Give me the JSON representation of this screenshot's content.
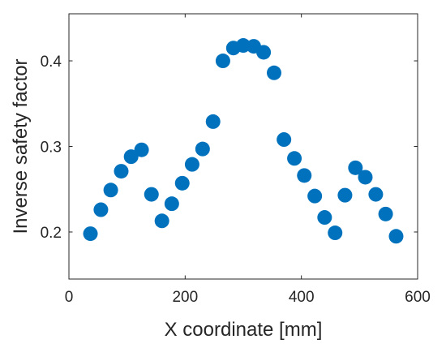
{
  "chart_data": {
    "type": "scatter",
    "title": "",
    "xlabel": "X coordinate [mm]",
    "ylabel": "Inverse safety factor",
    "xlim": [
      0,
      600
    ],
    "ylim": [
      0.145,
      0.455
    ],
    "x_ticks": [
      0,
      200,
      400,
      600
    ],
    "y_ticks": [
      0.2,
      0.3,
      0.4
    ],
    "x_tick_labels": [
      "0",
      "200",
      "400",
      "600"
    ],
    "y_tick_labels": [
      "0.2",
      "0.3",
      "0.4"
    ],
    "grid": false,
    "legend": "none",
    "marker_color": "#0072BD",
    "axis_color": "#262626",
    "series": [
      {
        "x": [
          37,
          55,
          72,
          90,
          107,
          125,
          142,
          160,
          177,
          195,
          212,
          230,
          248,
          265,
          283,
          300,
          318,
          335,
          353,
          370,
          388,
          405,
          423,
          440,
          458,
          475,
          493,
          510,
          528,
          545,
          563
        ],
        "y": [
          0.198,
          0.226,
          0.249,
          0.271,
          0.288,
          0.296,
          0.244,
          0.213,
          0.233,
          0.257,
          0.279,
          0.297,
          0.329,
          0.4,
          0.415,
          0.418,
          0.417,
          0.41,
          0.386,
          0.308,
          0.286,
          0.266,
          0.242,
          0.217,
          0.199,
          0.243,
          0.275,
          0.264,
          0.244,
          0.221,
          0.195
        ]
      }
    ]
  }
}
